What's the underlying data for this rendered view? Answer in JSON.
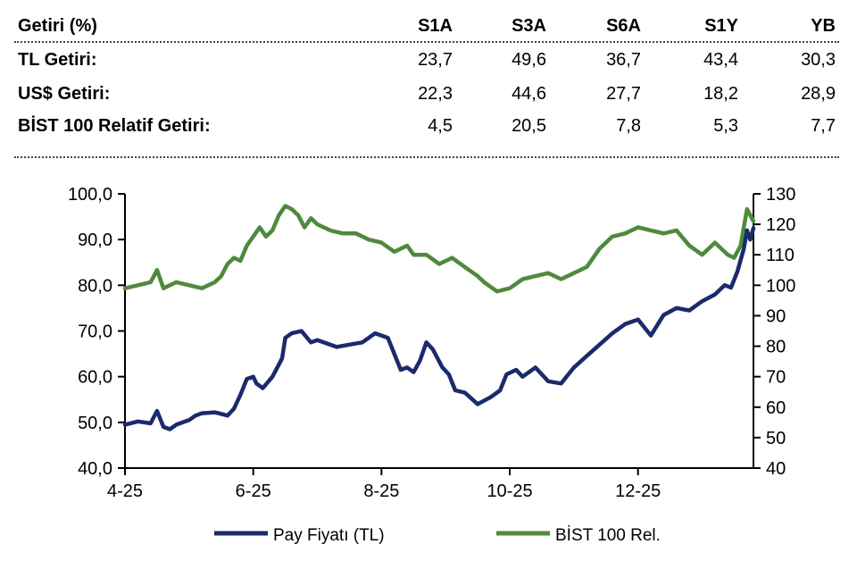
{
  "returns_table": {
    "header": {
      "label": "Getiri (%)",
      "cols": [
        "S1A",
        "S3A",
        "S6A",
        "S1Y",
        "YB"
      ]
    },
    "rows": [
      {
        "label": "TL Getiri:",
        "values": [
          "23,7",
          "49,6",
          "36,7",
          "43,4",
          "30,3"
        ]
      },
      {
        "label": "US$ Getiri:",
        "values": [
          "22,3",
          "44,6",
          "27,7",
          "18,2",
          "28,9"
        ]
      },
      {
        "label": "BİST 100 Relatif Getiri:",
        "values": [
          "4,5",
          "20,5",
          "7,8",
          "5,3",
          "7,7"
        ]
      }
    ]
  },
  "colors": {
    "price": "#1b2a6b",
    "relative": "#4e8a3c"
  },
  "chart_data": {
    "type": "line",
    "x_ticks": [
      "4-25",
      "6-25",
      "8-25",
      "10-25",
      "12-25"
    ],
    "y_left": {
      "min": 40,
      "max": 100,
      "ticks": [
        "40,0",
        "50,0",
        "60,0",
        "70,0",
        "80,0",
        "90,0",
        "100,0"
      ]
    },
    "y_right": {
      "min": 40,
      "max": 130,
      "ticks": [
        "40",
        "50",
        "60",
        "70",
        "80",
        "90",
        "100",
        "110",
        "120",
        "130"
      ]
    },
    "x_months": {
      "start": 0,
      "end": 9.8
    },
    "series": [
      {
        "name": "Pay Fiyatı (TL)",
        "axis": "left",
        "x": [
          0,
          0.2,
          0.4,
          0.5,
          0.6,
          0.7,
          0.8,
          1.0,
          1.1,
          1.2,
          1.4,
          1.6,
          1.7,
          1.8,
          1.9,
          2.0,
          2.05,
          2.15,
          2.3,
          2.45,
          2.5,
          2.6,
          2.75,
          2.9,
          3.0,
          3.1,
          3.3,
          3.5,
          3.7,
          3.9,
          4.0,
          4.1,
          4.3,
          4.4,
          4.5,
          4.6,
          4.7,
          4.8,
          4.95,
          5.05,
          5.15,
          5.3,
          5.5,
          5.7,
          5.85,
          5.95,
          6.1,
          6.2,
          6.3,
          6.4,
          6.6,
          6.8,
          7.0,
          7.2,
          7.4,
          7.6,
          7.8,
          8.0,
          8.2,
          8.4,
          8.6,
          8.8,
          9.0,
          9.2,
          9.35,
          9.45,
          9.55,
          9.65,
          9.7,
          9.75,
          9.8
        ],
        "y": [
          49.5,
          50.2,
          49.8,
          52.5,
          49.0,
          48.5,
          49.5,
          50.5,
          51.5,
          52.0,
          52.2,
          51.5,
          53.0,
          56.0,
          59.5,
          60.0,
          58.5,
          57.5,
          60.0,
          64.0,
          68.5,
          69.5,
          70.0,
          67.5,
          68.0,
          67.5,
          66.5,
          67.0,
          67.5,
          69.5,
          69.0,
          68.5,
          61.5,
          62.0,
          61.0,
          63.5,
          67.5,
          66.0,
          62.0,
          60.5,
          57.0,
          56.5,
          54.0,
          55.5,
          57.0,
          60.5,
          61.5,
          60.0,
          61.0,
          62.0,
          59.0,
          58.5,
          62.0,
          64.5,
          67.0,
          69.5,
          71.5,
          72.5,
          69.0,
          73.5,
          75.0,
          74.5,
          76.5,
          78.0,
          80.0,
          79.5,
          83.0,
          88.0,
          92.0,
          90.0,
          92.5
        ]
      },
      {
        "name": "BIST 100 Rel.",
        "axis": "right",
        "x": [
          0,
          0.2,
          0.4,
          0.5,
          0.6,
          0.7,
          0.8,
          1.0,
          1.2,
          1.4,
          1.5,
          1.6,
          1.7,
          1.8,
          1.9,
          2.0,
          2.1,
          2.2,
          2.3,
          2.4,
          2.5,
          2.6,
          2.7,
          2.8,
          2.9,
          3.0,
          3.2,
          3.4,
          3.6,
          3.8,
          4.0,
          4.2,
          4.4,
          4.5,
          4.7,
          4.9,
          5.1,
          5.3,
          5.5,
          5.6,
          5.8,
          6.0,
          6.2,
          6.4,
          6.6,
          6.8,
          7.0,
          7.2,
          7.4,
          7.6,
          7.8,
          8.0,
          8.2,
          8.4,
          8.6,
          8.8,
          9.0,
          9.2,
          9.4,
          9.5,
          9.6,
          9.7,
          9.8
        ],
        "y": [
          99,
          100,
          101,
          105,
          99,
          100,
          101,
          100,
          99,
          101,
          103,
          107,
          109,
          108,
          113,
          116,
          119,
          116,
          118,
          123,
          126,
          125,
          123,
          119,
          122,
          120,
          118,
          117,
          117,
          115,
          114,
          111,
          113,
          110,
          110,
          107,
          109,
          106,
          103,
          101,
          98,
          99,
          102,
          103,
          104,
          102,
          104,
          106,
          112,
          116,
          117,
          119,
          118,
          117,
          118,
          113,
          110,
          114,
          110,
          109,
          113,
          125,
          121
        ]
      }
    ],
    "legend": {
      "position": "bottom",
      "labels": [
        "Pay Fiyatı (TL)",
        "BİST 100 Rel."
      ]
    }
  }
}
